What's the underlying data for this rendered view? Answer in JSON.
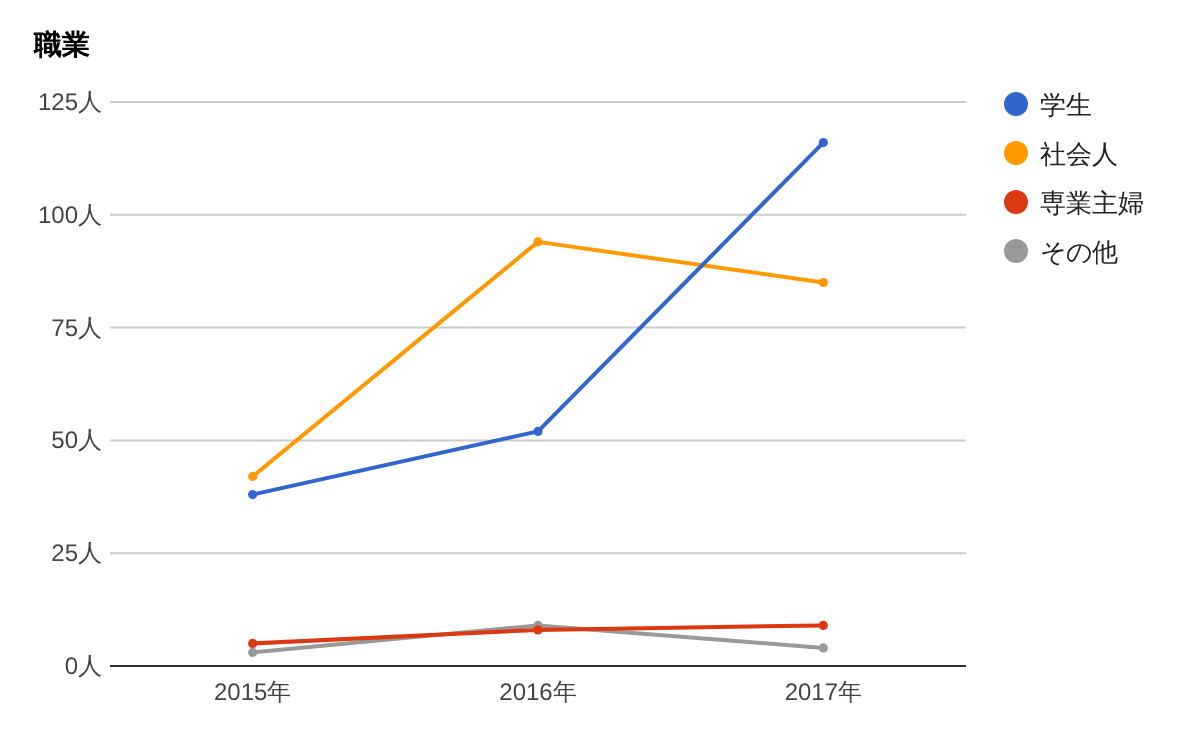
{
  "chart_data": {
    "type": "line",
    "title": "職業",
    "categories": [
      "2015年",
      "2016年",
      "2017年"
    ],
    "series": [
      {
        "name": "学生",
        "color": "#3366cc",
        "values": [
          38,
          52,
          116
        ]
      },
      {
        "name": "社会人",
        "color": "#ff9900",
        "values": [
          42,
          94,
          85
        ]
      },
      {
        "name": "専業主婦",
        "color": "#dc3912",
        "values": [
          5,
          8,
          9
        ]
      },
      {
        "name": "その他",
        "color": "#999999",
        "values": [
          3,
          9,
          4
        ]
      }
    ],
    "ylim": [
      0,
      125
    ],
    "yticks": [
      {
        "value": 0,
        "label": "0人"
      },
      {
        "value": 25,
        "label": "25人"
      },
      {
        "value": 50,
        "label": "50人"
      },
      {
        "value": 75,
        "label": "75人"
      },
      {
        "value": 100,
        "label": "100人"
      },
      {
        "value": 125,
        "label": "125人"
      }
    ],
    "grid": "y",
    "legend": "right",
    "marker": "circle",
    "line_style": "solid"
  }
}
